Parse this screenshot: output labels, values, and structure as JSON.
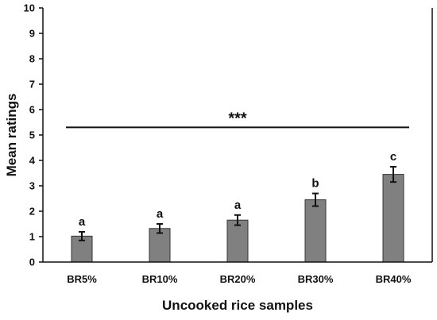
{
  "chart_data": {
    "type": "bar",
    "categories": [
      "BR5%",
      "BR10%",
      "BR20%",
      "BR30%",
      "BR40%"
    ],
    "values": [
      1.02,
      1.32,
      1.65,
      2.45,
      3.45
    ],
    "errors": [
      0.17,
      0.18,
      0.2,
      0.25,
      0.3
    ],
    "significance_letters": [
      "a",
      "a",
      "a",
      "b",
      "c"
    ],
    "overall_significance": "***",
    "overall_significance_y": 5.3,
    "xlabel": "Uncooked rice samples",
    "ylabel": "Mean ratings",
    "ylim": [
      0,
      10
    ],
    "yticks": [
      0,
      1,
      2,
      3,
      4,
      5,
      6,
      7,
      8,
      9,
      10
    ],
    "grid": false,
    "colors": {
      "bar_fill": "#808080",
      "bar_stroke": "#333333",
      "axis": "#111111"
    }
  }
}
